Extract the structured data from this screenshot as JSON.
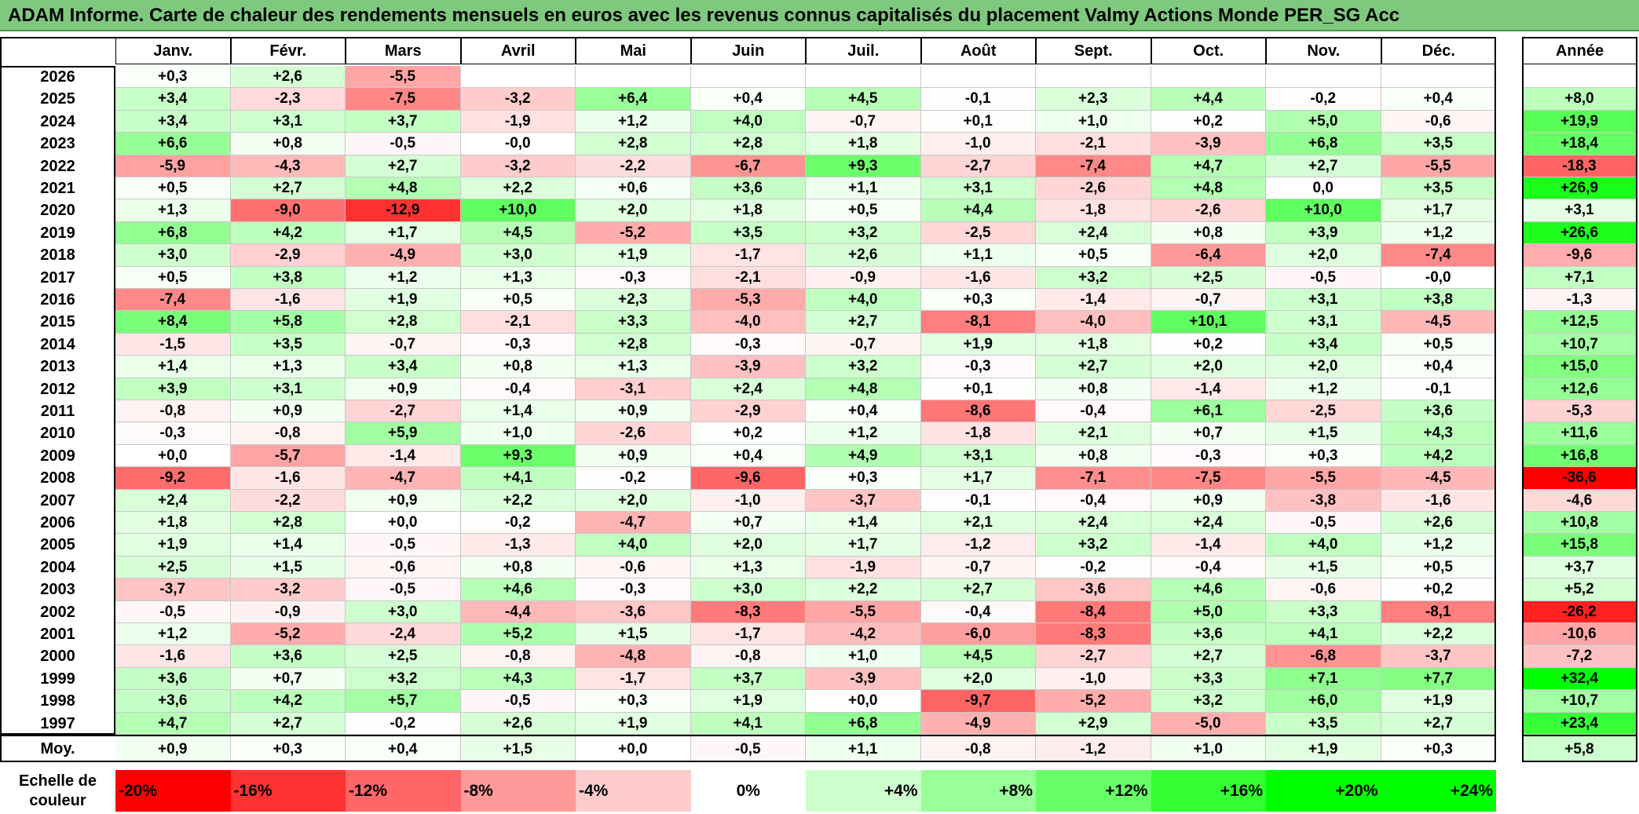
{
  "title": "ADAM Informe. Carte de chaleur des rendements mensuels en euros avec les revenus connus capitalisés du placement Valmy Actions Monde PER_SG Acc",
  "chart_data": {
    "type": "heatmap",
    "title": "ADAM Informe. Carte de chaleur des rendements mensuels en euros avec les revenus connus capitalisés du placement Valmy Actions Monde PER_SG Acc",
    "columns": [
      "Janv.",
      "Févr.",
      "Mars",
      "Avril",
      "Mai",
      "Juin",
      "Juil.",
      "Août",
      "Sept.",
      "Oct.",
      "Nov.",
      "Déc."
    ],
    "year_label": "Année",
    "avg_label": "Moy.",
    "rows": [
      {
        "year": "2026",
        "months": [
          "+0,3",
          "+2,6",
          "-5,5",
          "",
          "",
          "",
          "",
          "",
          "",
          "",
          "",
          ""
        ],
        "annual": ""
      },
      {
        "year": "2025",
        "months": [
          "+3,4",
          "-2,3",
          "-7,5",
          "-3,2",
          "+6,4",
          "+0,4",
          "+4,5",
          "-0,1",
          "+2,3",
          "+4,4",
          "-0,2",
          "+0,4"
        ],
        "annual": "+8,0"
      },
      {
        "year": "2024",
        "months": [
          "+3,4",
          "+3,1",
          "+3,7",
          "-1,9",
          "+1,2",
          "+4,0",
          "-0,7",
          "+0,1",
          "+1,0",
          "+0,2",
          "+5,0",
          "-0,6"
        ],
        "annual": "+19,9"
      },
      {
        "year": "2023",
        "months": [
          "+6,6",
          "+0,8",
          "-0,5",
          "-0,0",
          "+2,8",
          "+2,8",
          "+1,8",
          "-1,0",
          "-2,1",
          "-3,9",
          "+6,8",
          "+3,5"
        ],
        "annual": "+18,4"
      },
      {
        "year": "2022",
        "months": [
          "-5,9",
          "-4,3",
          "+2,7",
          "-3,2",
          "-2,2",
          "-6,7",
          "+9,3",
          "-2,7",
          "-7,4",
          "+4,7",
          "+2,7",
          "-5,5"
        ],
        "annual": "-18,3"
      },
      {
        "year": "2021",
        "months": [
          "+0,5",
          "+2,7",
          "+4,8",
          "+2,2",
          "+0,6",
          "+3,6",
          "+1,1",
          "+3,1",
          "-2,6",
          "+4,8",
          "0,0",
          "+3,5"
        ],
        "annual": "+26,9"
      },
      {
        "year": "2020",
        "months": [
          "+1,3",
          "-9,0",
          "-12,9",
          "+10,0",
          "+2,0",
          "+1,8",
          "+0,5",
          "+4,4",
          "-1,8",
          "-2,6",
          "+10,0",
          "+1,7"
        ],
        "annual": "+3,1"
      },
      {
        "year": "2019",
        "months": [
          "+6,8",
          "+4,2",
          "+1,7",
          "+4,5",
          "-5,2",
          "+3,5",
          "+3,2",
          "-2,5",
          "+2,4",
          "+0,8",
          "+3,9",
          "+1,2"
        ],
        "annual": "+26,6"
      },
      {
        "year": "2018",
        "months": [
          "+3,0",
          "-2,9",
          "-4,9",
          "+3,0",
          "+1,9",
          "-1,7",
          "+2,6",
          "+1,1",
          "+0,5",
          "-6,4",
          "+2,0",
          "-7,4"
        ],
        "annual": "-9,6"
      },
      {
        "year": "2017",
        "months": [
          "+0,5",
          "+3,8",
          "+1,2",
          "+1,3",
          "-0,3",
          "-2,1",
          "-0,9",
          "-1,6",
          "+3,2",
          "+2,5",
          "-0,5",
          "-0,0"
        ],
        "annual": "+7,1"
      },
      {
        "year": "2016",
        "months": [
          "-7,4",
          "-1,6",
          "+1,9",
          "+0,5",
          "+2,3",
          "-5,3",
          "+4,0",
          "+0,3",
          "-1,4",
          "-0,7",
          "+3,1",
          "+3,8"
        ],
        "annual": "-1,3"
      },
      {
        "year": "2015",
        "months": [
          "+8,4",
          "+5,8",
          "+2,8",
          "-2,1",
          "+3,3",
          "-4,0",
          "+2,7",
          "-8,1",
          "-4,0",
          "+10,1",
          "+3,1",
          "-4,5"
        ],
        "annual": "+12,5"
      },
      {
        "year": "2014",
        "months": [
          "-1,5",
          "+3,5",
          "-0,7",
          "-0,3",
          "+2,8",
          "-0,3",
          "-0,7",
          "+1,9",
          "+1,8",
          "+0,2",
          "+3,4",
          "+0,5"
        ],
        "annual": "+10,7"
      },
      {
        "year": "2013",
        "months": [
          "+1,4",
          "+1,3",
          "+3,4",
          "+0,8",
          "+1,3",
          "-3,9",
          "+3,2",
          "-0,3",
          "+2,7",
          "+2,0",
          "+2,0",
          "+0,4"
        ],
        "annual": "+15,0"
      },
      {
        "year": "2012",
        "months": [
          "+3,9",
          "+3,1",
          "+0,9",
          "-0,4",
          "-3,1",
          "+2,4",
          "+4,8",
          "+0,1",
          "+0,8",
          "-1,4",
          "+1,2",
          "-0,1"
        ],
        "annual": "+12,6"
      },
      {
        "year": "2011",
        "months": [
          "-0,8",
          "+0,9",
          "-2,7",
          "+1,4",
          "+0,9",
          "-2,9",
          "+0,4",
          "-8,6",
          "-0,4",
          "+6,1",
          "-2,5",
          "+3,6"
        ],
        "annual": "-5,3"
      },
      {
        "year": "2010",
        "months": [
          "-0,3",
          "-0,8",
          "+5,9",
          "+1,0",
          "-2,6",
          "+0,2",
          "+1,2",
          "-1,8",
          "+2,1",
          "+0,7",
          "+1,5",
          "+4,3"
        ],
        "annual": "+11,6"
      },
      {
        "year": "2009",
        "months": [
          "+0,0",
          "-5,7",
          "-1,4",
          "+9,3",
          "+0,9",
          "+0,4",
          "+4,9",
          "+3,1",
          "+0,8",
          "-0,3",
          "+0,3",
          "+4,2"
        ],
        "annual": "+16,8"
      },
      {
        "year": "2008",
        "months": [
          "-9,2",
          "-1,6",
          "-4,7",
          "+4,1",
          "-0,2",
          "-9,6",
          "+0,3",
          "+1,7",
          "-7,1",
          "-7,5",
          "-5,5",
          "-4,5"
        ],
        "annual": "-36,6"
      },
      {
        "year": "2007",
        "months": [
          "+2,4",
          "-2,2",
          "+0,9",
          "+2,2",
          "+2,0",
          "-1,0",
          "-3,7",
          "-0,1",
          "-0,4",
          "+0,9",
          "-3,8",
          "-1,6"
        ],
        "annual": "-4,6"
      },
      {
        "year": "2006",
        "months": [
          "+1,8",
          "+2,8",
          "+0,0",
          "-0,2",
          "-4,7",
          "+0,7",
          "+1,4",
          "+2,1",
          "+2,4",
          "+2,4",
          "-0,5",
          "+2,6"
        ],
        "annual": "+10,8"
      },
      {
        "year": "2005",
        "months": [
          "+1,9",
          "+1,4",
          "-0,5",
          "-1,3",
          "+4,0",
          "+2,0",
          "+1,7",
          "-1,2",
          "+3,2",
          "-1,4",
          "+4,0",
          "+1,2"
        ],
        "annual": "+15,8"
      },
      {
        "year": "2004",
        "months": [
          "+2,5",
          "+1,5",
          "-0,6",
          "+0,8",
          "-0,6",
          "+1,3",
          "-1,9",
          "-0,7",
          "-0,2",
          "-0,4",
          "+1,5",
          "+0,5"
        ],
        "annual": "+3,7"
      },
      {
        "year": "2003",
        "months": [
          "-3,7",
          "-3,2",
          "-0,5",
          "+4,6",
          "-0,3",
          "+3,0",
          "+2,2",
          "+2,7",
          "-3,6",
          "+4,6",
          "-0,6",
          "+0,2"
        ],
        "annual": "+5,2"
      },
      {
        "year": "2002",
        "months": [
          "-0,5",
          "-0,9",
          "+3,0",
          "-4,4",
          "-3,6",
          "-8,3",
          "-5,5",
          "-0,4",
          "-8,4",
          "+5,0",
          "+3,3",
          "-8,1"
        ],
        "annual": "-26,2"
      },
      {
        "year": "2001",
        "months": [
          "+1,2",
          "-5,2",
          "-2,4",
          "+5,2",
          "+1,5",
          "-1,7",
          "-4,2",
          "-6,0",
          "-8,3",
          "+3,6",
          "+4,1",
          "+2,2"
        ],
        "annual": "-10,6"
      },
      {
        "year": "2000",
        "months": [
          "-1,6",
          "+3,6",
          "+2,5",
          "-0,8",
          "-4,8",
          "-0,8",
          "+1,0",
          "+4,5",
          "-2,7",
          "+2,7",
          "-6,8",
          "-3,7"
        ],
        "annual": "-7,2"
      },
      {
        "year": "1999",
        "months": [
          "+3,6",
          "+0,7",
          "+3,2",
          "+4,3",
          "-1,7",
          "+3,7",
          "-3,9",
          "+2,0",
          "-1,0",
          "+3,3",
          "+7,1",
          "+7,7"
        ],
        "annual": "+32,4"
      },
      {
        "year": "1998",
        "months": [
          "+3,6",
          "+4,2",
          "+5,7",
          "-0,5",
          "+0,3",
          "+1,9",
          "+0,0",
          "-9,7",
          "-5,2",
          "+3,2",
          "+6,0",
          "+1,9"
        ],
        "annual": "+10,7"
      },
      {
        "year": "1997",
        "months": [
          "+4,7",
          "+2,7",
          "-0,2",
          "+2,6",
          "+1,9",
          "+4,1",
          "+6,8",
          "-4,9",
          "+2,9",
          "-5,0",
          "+3,5",
          "+2,7"
        ],
        "annual": "+23,4"
      }
    ],
    "averages": {
      "months": [
        "+0,9",
        "+0,3",
        "+0,4",
        "+1,5",
        "+0,0",
        "-0,5",
        "+1,1",
        "-0,8",
        "-1,2",
        "+1,0",
        "+1,9",
        "+0,3"
      ],
      "annual": "+5,8"
    },
    "scale_label": [
      "Echelle de",
      "couleur"
    ],
    "scale": [
      {
        "label": "-20%",
        "value": -20
      },
      {
        "label": "-16%",
        "value": -16
      },
      {
        "label": "-12%",
        "value": -12
      },
      {
        "label": "-8%",
        "value": -8
      },
      {
        "label": "-4%",
        "value": -4
      },
      {
        "label": "0%",
        "value": 0
      },
      {
        "label": "+4%",
        "value": 4
      },
      {
        "label": "+8%",
        "value": 8
      },
      {
        "label": "+12%",
        "value": 12
      },
      {
        "label": "+16%",
        "value": 16
      },
      {
        "label": "+20%",
        "value": 20
      },
      {
        "label": "+24%",
        "value": 24
      }
    ],
    "colors": {
      "neg": "#ff0000",
      "pos": "#00ff00",
      "zero": "#ffffff"
    }
  }
}
